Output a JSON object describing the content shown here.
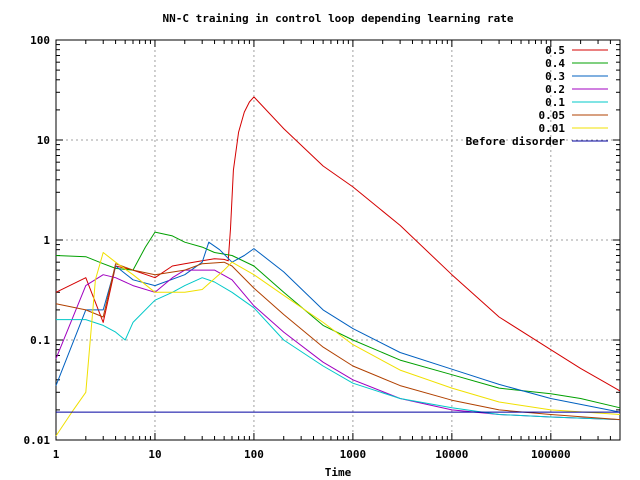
{
  "chart_data": {
    "type": "line",
    "title": "NN-C training in control loop depending learning rate",
    "xlabel": "Time",
    "ylabel": "",
    "xscale": "log",
    "yscale": "log",
    "xlim": [
      1,
      500000
    ],
    "ylim": [
      0.01,
      100
    ],
    "x_ticks": [
      1,
      10,
      100,
      1000,
      10000,
      100000
    ],
    "x_tick_labels": [
      "1",
      "10",
      "100",
      "1000",
      "10000",
      "100000"
    ],
    "y_ticks": [
      0.01,
      0.1,
      1,
      10,
      100
    ],
    "y_tick_labels": [
      "0.01",
      "0.1",
      "1",
      "10",
      "100"
    ],
    "grid": true,
    "legend_position": "top-right",
    "series": [
      {
        "name": "0.5",
        "color": "#d40000",
        "points": [
          [
            1,
            0.3
          ],
          [
            2,
            0.42
          ],
          [
            3,
            0.15
          ],
          [
            4,
            0.55
          ],
          [
            6,
            0.5
          ],
          [
            10,
            0.42
          ],
          [
            15,
            0.55
          ],
          [
            20,
            0.58
          ],
          [
            30,
            0.62
          ],
          [
            40,
            0.65
          ],
          [
            50,
            0.64
          ],
          [
            55,
            0.62
          ],
          [
            58,
            1.3
          ],
          [
            62,
            5
          ],
          [
            70,
            12
          ],
          [
            80,
            19
          ],
          [
            90,
            24
          ],
          [
            100,
            27
          ],
          [
            200,
            13
          ],
          [
            500,
            5.5
          ],
          [
            1000,
            3.4
          ],
          [
            3000,
            1.4
          ],
          [
            10000,
            0.45
          ],
          [
            30000,
            0.17
          ],
          [
            100000,
            0.08
          ],
          [
            200000,
            0.052
          ],
          [
            500000,
            0.031
          ]
        ]
      },
      {
        "name": "0.4",
        "color": "#00a000",
        "points": [
          [
            1,
            0.7
          ],
          [
            2,
            0.68
          ],
          [
            3,
            0.58
          ],
          [
            4,
            0.52
          ],
          [
            6,
            0.5
          ],
          [
            8,
            0.85
          ],
          [
            10,
            1.2
          ],
          [
            15,
            1.1
          ],
          [
            20,
            0.95
          ],
          [
            30,
            0.85
          ],
          [
            40,
            0.75
          ],
          [
            60,
            0.7
          ],
          [
            100,
            0.55
          ],
          [
            200,
            0.3
          ],
          [
            500,
            0.14
          ],
          [
            1000,
            0.1
          ],
          [
            3000,
            0.063
          ],
          [
            10000,
            0.045
          ],
          [
            30000,
            0.033
          ],
          [
            100000,
            0.029
          ],
          [
            200000,
            0.026
          ],
          [
            500000,
            0.021
          ]
        ]
      },
      {
        "name": "0.3",
        "color": "#0060c0",
        "points": [
          [
            1,
            0.035
          ],
          [
            2,
            0.2
          ],
          [
            3,
            0.2
          ],
          [
            4,
            0.55
          ],
          [
            6,
            0.4
          ],
          [
            10,
            0.35
          ],
          [
            20,
            0.45
          ],
          [
            30,
            0.6
          ],
          [
            35,
            0.95
          ],
          [
            45,
            0.8
          ],
          [
            60,
            0.6
          ],
          [
            80,
            0.7
          ],
          [
            100,
            0.82
          ],
          [
            200,
            0.48
          ],
          [
            500,
            0.2
          ],
          [
            1000,
            0.13
          ],
          [
            3000,
            0.075
          ],
          [
            10000,
            0.051
          ],
          [
            30000,
            0.036
          ],
          [
            100000,
            0.026
          ],
          [
            500000,
            0.019
          ]
        ]
      },
      {
        "name": "0.2",
        "color": "#a000c0",
        "points": [
          [
            1,
            0.065
          ],
          [
            2,
            0.35
          ],
          [
            3,
            0.45
          ],
          [
            4,
            0.42
          ],
          [
            6,
            0.35
          ],
          [
            10,
            0.3
          ],
          [
            15,
            0.42
          ],
          [
            20,
            0.5
          ],
          [
            30,
            0.5
          ],
          [
            40,
            0.5
          ],
          [
            60,
            0.4
          ],
          [
            100,
            0.22
          ],
          [
            200,
            0.12
          ],
          [
            500,
            0.06
          ],
          [
            1000,
            0.04
          ],
          [
            3000,
            0.026
          ],
          [
            10000,
            0.02
          ],
          [
            30000,
            0.018
          ],
          [
            100000,
            0.017
          ],
          [
            500000,
            0.016
          ]
        ]
      },
      {
        "name": "0.1",
        "color": "#00c8c8",
        "points": [
          [
            1,
            0.16
          ],
          [
            2,
            0.16
          ],
          [
            3,
            0.14
          ],
          [
            4,
            0.12
          ],
          [
            5,
            0.1
          ],
          [
            6,
            0.15
          ],
          [
            10,
            0.25
          ],
          [
            15,
            0.3
          ],
          [
            20,
            0.35
          ],
          [
            30,
            0.42
          ],
          [
            40,
            0.38
          ],
          [
            60,
            0.3
          ],
          [
            100,
            0.21
          ],
          [
            200,
            0.1
          ],
          [
            500,
            0.055
          ],
          [
            1000,
            0.037
          ],
          [
            3000,
            0.026
          ],
          [
            10000,
            0.021
          ],
          [
            30000,
            0.018
          ],
          [
            100000,
            0.017
          ],
          [
            500000,
            0.016
          ]
        ]
      },
      {
        "name": "0.05",
        "color": "#b04000",
        "points": [
          [
            1,
            0.23
          ],
          [
            2,
            0.2
          ],
          [
            3,
            0.17
          ],
          [
            4,
            0.58
          ],
          [
            6,
            0.5
          ],
          [
            10,
            0.45
          ],
          [
            20,
            0.5
          ],
          [
            30,
            0.58
          ],
          [
            50,
            0.6
          ],
          [
            60,
            0.55
          ],
          [
            100,
            0.33
          ],
          [
            200,
            0.18
          ],
          [
            500,
            0.085
          ],
          [
            1000,
            0.055
          ],
          [
            3000,
            0.035
          ],
          [
            10000,
            0.025
          ],
          [
            30000,
            0.02
          ],
          [
            100000,
            0.018
          ],
          [
            500000,
            0.016
          ]
        ]
      },
      {
        "name": "0.01",
        "color": "#f0e000",
        "points": [
          [
            1,
            0.011
          ],
          [
            1.5,
            0.02
          ],
          [
            2,
            0.03
          ],
          [
            2.5,
            0.4
          ],
          [
            3,
            0.75
          ],
          [
            4,
            0.6
          ],
          [
            6,
            0.45
          ],
          [
            10,
            0.3
          ],
          [
            15,
            0.3
          ],
          [
            20,
            0.3
          ],
          [
            30,
            0.32
          ],
          [
            50,
            0.5
          ],
          [
            60,
            0.6
          ],
          [
            100,
            0.45
          ],
          [
            200,
            0.28
          ],
          [
            500,
            0.15
          ],
          [
            1000,
            0.09
          ],
          [
            3000,
            0.05
          ],
          [
            10000,
            0.033
          ],
          [
            30000,
            0.024
          ],
          [
            100000,
            0.02
          ],
          [
            500000,
            0.018
          ]
        ]
      },
      {
        "name": "Before disorder",
        "color": "#0000a0",
        "points": [
          [
            1,
            0.019
          ],
          [
            500000,
            0.019
          ]
        ]
      }
    ]
  }
}
